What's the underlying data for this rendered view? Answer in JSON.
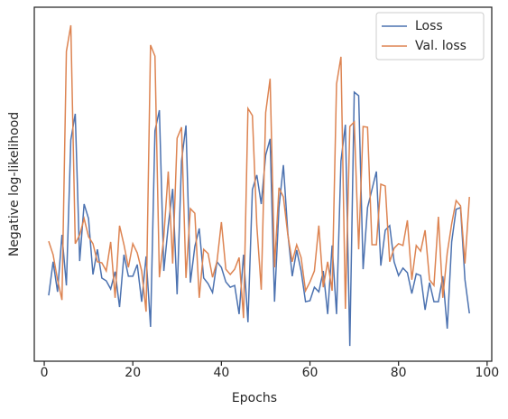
{
  "chart_data": {
    "type": "line",
    "xlabel": "Epochs",
    "ylabel": "Negative log-likelihood",
    "x": [
      1,
      2,
      3,
      4,
      5,
      6,
      7,
      8,
      9,
      10,
      11,
      12,
      13,
      14,
      15,
      16,
      17,
      18,
      19,
      20,
      21,
      22,
      23,
      24,
      25,
      26,
      27,
      28,
      29,
      30,
      31,
      32,
      33,
      34,
      35,
      36,
      37,
      38,
      39,
      40,
      41,
      42,
      43,
      44,
      45,
      46,
      47,
      48,
      49,
      50,
      51,
      52,
      53,
      54,
      55,
      56,
      57,
      58,
      59,
      60,
      61,
      62,
      63,
      64,
      65,
      66,
      67,
      68,
      69,
      70,
      71,
      72,
      73,
      74,
      75,
      76,
      77,
      78,
      79,
      80,
      81,
      82,
      83,
      84,
      85,
      86,
      87,
      88,
      89,
      90,
      91,
      92,
      93,
      94,
      95,
      96
    ],
    "series": [
      {
        "name": "Loss",
        "color": "#4c72b0",
        "values": [
          18.6,
          28.1,
          19.6,
          35.7,
          21.4,
          62.5,
          69.9,
          28.3,
          44.4,
          40.3,
          24.5,
          31.6,
          23.5,
          22.7,
          20.4,
          25.3,
          15.3,
          30.1,
          24.0,
          24.0,
          27.3,
          16.8,
          29.6,
          9.7,
          65.1,
          70.9,
          25.5,
          38.3,
          48.7,
          18.9,
          56.6,
          66.6,
          22.2,
          32.4,
          37.5,
          23.5,
          21.9,
          19.4,
          28.1,
          26.5,
          22.4,
          20.9,
          21.4,
          13.3,
          30.1,
          11.0,
          48.5,
          52.6,
          44.4,
          58.2,
          62.8,
          16.8,
          43.4,
          55.4,
          36.2,
          24.0,
          31.4,
          25.5,
          16.8,
          17.1,
          20.9,
          19.6,
          25.5,
          13.3,
          32.7,
          13.3,
          56.6,
          66.8,
          4.3,
          76.0,
          75.0,
          26.0,
          43.4,
          48.5,
          53.6,
          27.0,
          37.0,
          38.3,
          28.1,
          24.2,
          26.3,
          25.0,
          19.1,
          24.7,
          24.2,
          14.5,
          22.2,
          16.8,
          16.8,
          24.0,
          9.2,
          33.7,
          42.9,
          43.4,
          23.0,
          13.5
        ]
      },
      {
        "name": "Val. loss",
        "color": "#dd8452",
        "values": [
          33.9,
          30.1,
          23.0,
          17.3,
          87.5,
          94.9,
          33.2,
          35.7,
          40.3,
          35.2,
          33.2,
          28.1,
          27.8,
          25.5,
          33.7,
          17.9,
          38.3,
          32.9,
          26.5,
          33.2,
          30.6,
          25.5,
          14.0,
          89.3,
          86.2,
          23.7,
          35.2,
          53.6,
          27.6,
          63.0,
          66.1,
          23.5,
          43.1,
          41.8,
          17.9,
          31.6,
          30.4,
          23.7,
          28.1,
          39.3,
          26.0,
          24.5,
          26.0,
          29.3,
          12.2,
          71.4,
          69.4,
          38.3,
          20.2,
          70.2,
          79.8,
          26.5,
          49.0,
          46.4,
          35.7,
          28.1,
          32.9,
          29.3,
          19.9,
          22.4,
          25.5,
          38.3,
          20.9,
          28.1,
          19.9,
          78.3,
          86.0,
          14.8,
          66.3,
          67.6,
          31.6,
          66.3,
          66.1,
          32.9,
          32.9,
          50.0,
          49.5,
          28.1,
          31.9,
          33.2,
          32.7,
          39.8,
          23.0,
          32.7,
          31.1,
          37.0,
          23.0,
          21.4,
          40.8,
          17.9,
          30.6,
          38.8,
          45.4,
          43.9,
          27.6,
          46.4
        ]
      }
    ],
    "xlim": [
      -2.25,
      101.05
    ],
    "xticks": [
      0,
      20,
      40,
      60,
      80,
      100
    ],
    "ylim": [
      0,
      100
    ],
    "legend": "upper right"
  }
}
